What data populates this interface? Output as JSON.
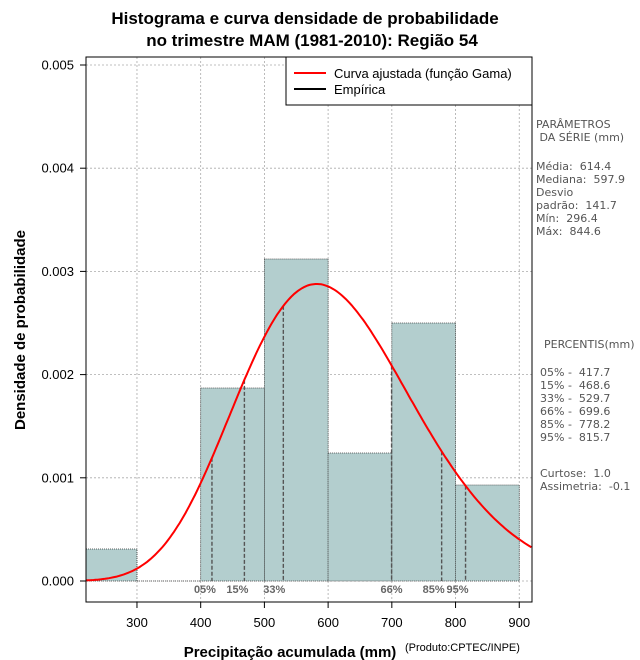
{
  "chart_data": {
    "type": "bar",
    "title_lines": [
      "Histograma e curva densidade de probabilidade",
      "no trimestre MAM (1981-2010): Região 54"
    ],
    "xlabel": "Precipitação acumulada (mm)",
    "ylabel": "Densidade de probabilidade",
    "credit": "(Produto:CPTEC/INPE)",
    "xlim": [
      220,
      920
    ],
    "ylim": [
      0,
      0.0051
    ],
    "xticks": [
      300,
      400,
      500,
      600,
      700,
      800,
      900
    ],
    "yticks": [
      0.0,
      0.001,
      0.002,
      0.003,
      0.004,
      0.005
    ],
    "ytick_labels": [
      "0.000",
      "0.001",
      "0.002",
      "0.003",
      "0.004",
      "0.005"
    ],
    "bins": [
      {
        "from": 220,
        "to": 300,
        "density": 0.00031
      },
      {
        "from": 400,
        "to": 500,
        "density": 0.00187
      },
      {
        "from": 500,
        "to": 600,
        "density": 0.00312
      },
      {
        "from": 600,
        "to": 700,
        "density": 0.00124
      },
      {
        "from": 700,
        "to": 800,
        "density": 0.0025
      },
      {
        "from": 800,
        "to": 900,
        "density": 0.00093
      }
    ],
    "gamma_fit": {
      "shape": 18.8,
      "scale": 32.7
    },
    "percentile_lines": [
      {
        "label": "05%",
        "value": 417.7
      },
      {
        "label": "15%",
        "value": 468.6
      },
      {
        "label": "33%",
        "value": 529.7
      },
      {
        "label": "66%",
        "value": 699.6
      },
      {
        "label": "85%",
        "value": 778.2
      },
      {
        "label": "95%",
        "value": 815.7
      }
    ],
    "legend": [
      {
        "label": "Curva ajustada (função Gama)",
        "color": "#ff0000"
      },
      {
        "label": "Empírica",
        "color": "#000000"
      }
    ]
  },
  "params_title": [
    "PARÂMETROS",
    " DA SÉRIE (mm)"
  ],
  "params": [
    "Média:  614.4",
    "Mediana:  597.9",
    "Desvio",
    "padrão:  141.7",
    "Mín:  296.4",
    "Máx:  844.6"
  ],
  "percentis_title": "PERCENTIS(mm)",
  "percentis": [
    "05% -  417.7",
    "15% -  468.6",
    "33% -  529.7",
    "66% -  699.6",
    "85% -  778.2",
    "95% -  815.7"
  ],
  "stats": [
    "Curtose:  1.0",
    "Assimetria:  -0.1"
  ],
  "colors": {
    "bar_fill": "#b3cece",
    "curve": "#ff0000",
    "grid": "#aaaaaa",
    "pct_line": "#555555"
  }
}
